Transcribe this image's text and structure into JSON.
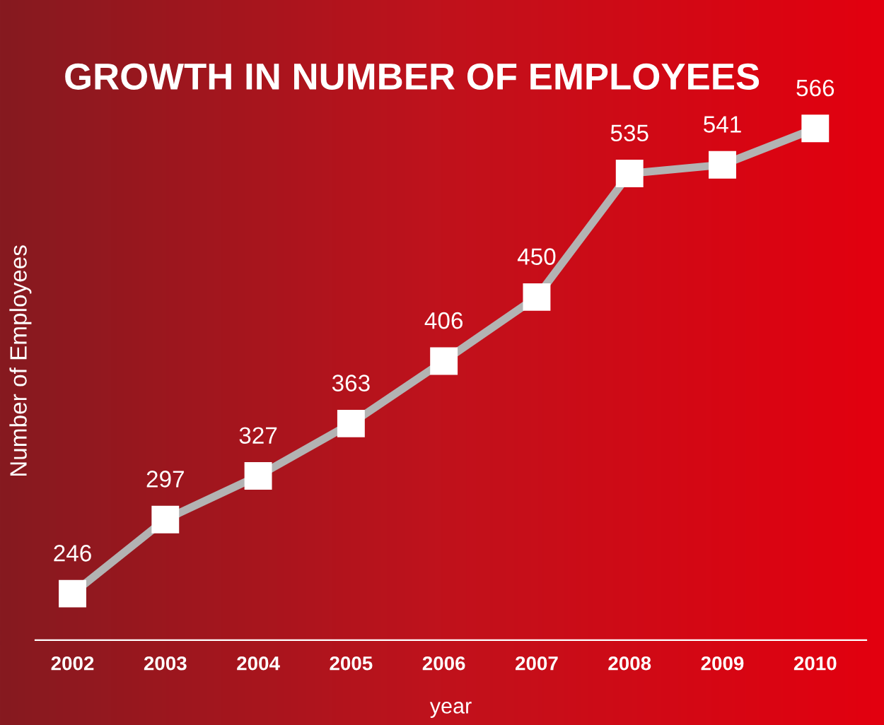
{
  "chart_data": {
    "type": "line",
    "title": "GROWTH IN NUMBER OF EMPLOYEES",
    "xlabel": "year",
    "ylabel": "Number of Employees",
    "categories": [
      "2002",
      "2003",
      "2004",
      "2005",
      "2006",
      "2007",
      "2008",
      "2009",
      "2010"
    ],
    "series": [
      {
        "color": "#b3b3b3",
        "values": [
          246,
          297,
          327,
          363,
          406,
          450,
          535,
          541,
          566
        ]
      }
    ],
    "marker": "square",
    "line_style": "solid",
    "data_labels": true,
    "grid": false,
    "legend": false
  }
}
